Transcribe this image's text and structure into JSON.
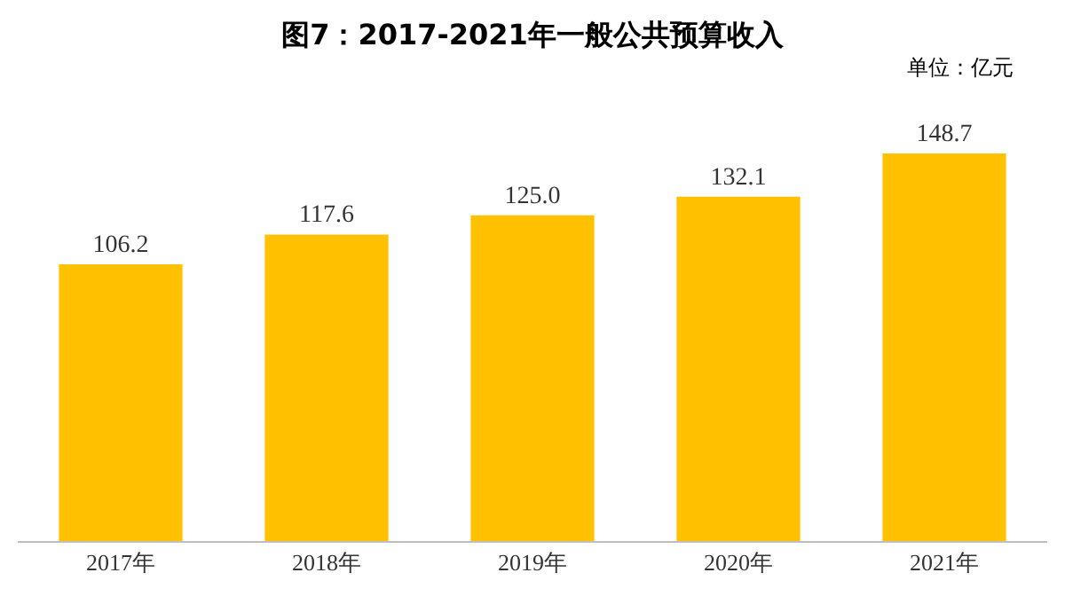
{
  "chart_data": {
    "type": "bar",
    "title": "图7：2017-2021年一般公共预算收入",
    "annotations": [
      "单位：亿元"
    ],
    "categories": [
      "2017年",
      "2018年",
      "2019年",
      "2020年",
      "2021年"
    ],
    "values": [
      106.2,
      117.6,
      125.0,
      132.1,
      148.7
    ],
    "value_labels": [
      "106.2",
      "117.6",
      "125.0",
      "132.1",
      "148.7"
    ],
    "color": "#ffc000",
    "legend": false,
    "tick_labels": "x"
  }
}
